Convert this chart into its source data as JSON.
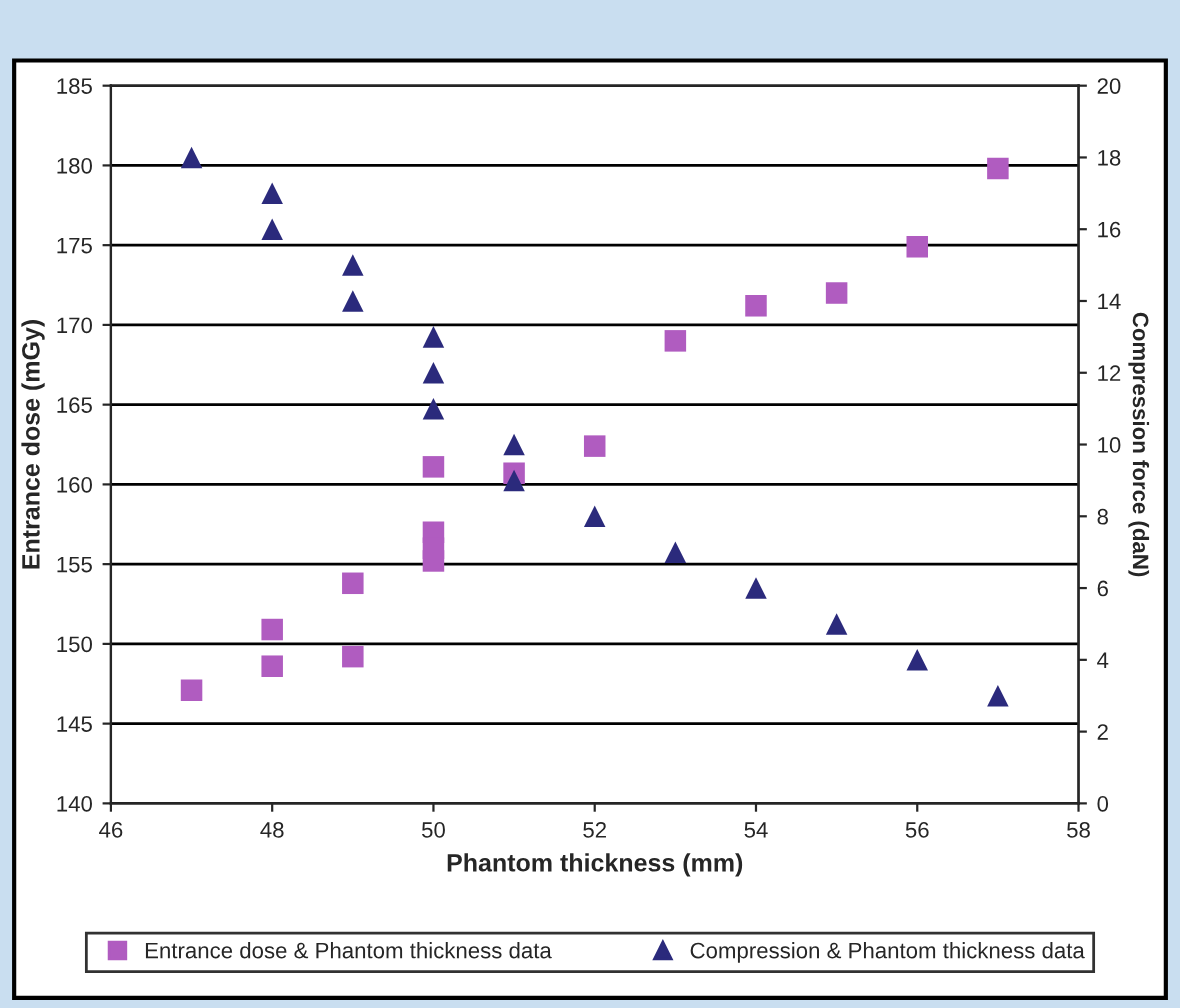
{
  "chart_data": {
    "type": "scatter",
    "xlabel": "Phantom thickness (mm)",
    "ylabel": "Entrance dose (mGy)",
    "y2label": "Compression force (daN)",
    "xlim": [
      46,
      58
    ],
    "xticks": [
      46,
      48,
      50,
      52,
      54,
      56,
      58
    ],
    "ylim": [
      140,
      185
    ],
    "yticks": [
      140,
      145,
      150,
      155,
      160,
      165,
      170,
      175,
      180,
      185
    ],
    "y2lim": [
      0,
      20
    ],
    "y2ticks": [
      0,
      2,
      4,
      6,
      8,
      10,
      12,
      14,
      16,
      18,
      20
    ],
    "grid": "y",
    "legend": "bottom",
    "series": [
      {
        "name": "Entrance dose & Phantom thickness data",
        "color": "#b05cc0",
        "marker": "square",
        "x": [
          47,
          48,
          48,
          49,
          49,
          50,
          50,
          50,
          50,
          51,
          52,
          53,
          54,
          55,
          56,
          57
        ],
        "values": [
          147.1,
          150.9,
          148.6,
          153.8,
          149.2,
          161.1,
          157,
          156,
          155.2,
          160.7,
          162.4,
          169,
          171.2,
          172,
          174.9,
          179.8
        ]
      },
      {
        "name": "Compression & Phantom thickness data",
        "color": "#2b2a7c",
        "marker": "triangle",
        "axis": "y2",
        "x": [
          47,
          48,
          48,
          49,
          49,
          50,
          50,
          50,
          51,
          51,
          52,
          53,
          54,
          55,
          56,
          57
        ],
        "values": [
          18,
          17,
          16,
          15,
          14,
          13,
          12,
          11,
          10,
          9,
          8,
          7,
          6,
          5,
          4,
          3
        ]
      }
    ]
  }
}
